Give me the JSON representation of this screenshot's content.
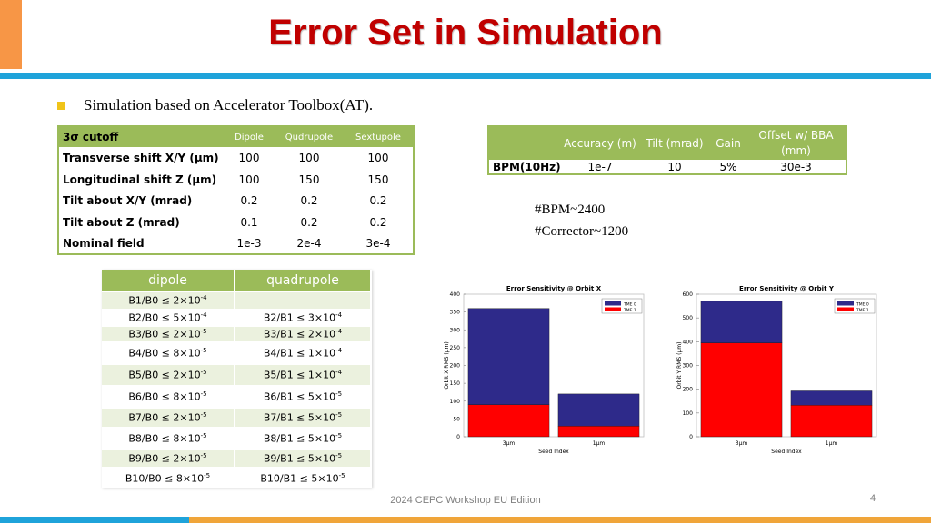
{
  "title": "Error Set in Simulation",
  "bullet": "Simulation based on Accelerator Toolbox(AT).",
  "cutoff_table": {
    "header": [
      "3σ cutoff",
      "Dipole",
      "Qudrupole",
      "Sextupole"
    ],
    "rows": [
      [
        "Transverse shift X/Y (μm)",
        "100",
        "100",
        "100"
      ],
      [
        "Longitudinal shift Z (μm)",
        "100",
        "150",
        "150"
      ],
      [
        "Tilt about X/Y (mrad)",
        "0.2",
        "0.2",
        "0.2"
      ],
      [
        "Tilt about Z (mrad)",
        "0.1",
        "0.2",
        "0.2"
      ],
      [
        "Nominal field",
        "1e-3",
        "2e-4",
        "3e-4"
      ]
    ]
  },
  "bpm_table": {
    "header": [
      "",
      "Accuracy (m)",
      "Tilt (mrad)",
      "Gain",
      "Offset w/ BBA (mm)"
    ],
    "row": [
      "BPM(10Hz)",
      "1e-7",
      "10",
      "5%",
      "30e-3"
    ]
  },
  "notes": [
    "#BPM~2400",
    "#Corrector~1200"
  ],
  "multipole_table": {
    "header": [
      "dipole",
      "quadrupole"
    ],
    "rows": [
      [
        [
          "B1/B0 ≤ 2×10",
          "-4"
        ],
        [
          "",
          ""
        ]
      ],
      [
        [
          "B2/B0 ≤ 5×10",
          "-4"
        ],
        [
          "B2/B1 ≤ 3×10",
          "-4"
        ]
      ],
      [
        [
          "B3/B0 ≤ 2×10",
          "-5"
        ],
        [
          "B3/B1 ≤ 2×10",
          "-4"
        ]
      ],
      [
        [
          "B4/B0 ≤ 8×10",
          "-5"
        ],
        [
          "B4/B1 ≤ 1×10",
          "-4"
        ]
      ],
      [
        [
          "B5/B0 ≤ 2×10",
          "-5"
        ],
        [
          "B5/B1 ≤ 1×10",
          "-4"
        ]
      ],
      [
        [
          "B6/B0 ≤ 8×10",
          "-5"
        ],
        [
          "B6/B1 ≤ 5×10",
          "-5"
        ]
      ],
      [
        [
          "B7/B0 ≤ 2×10",
          "-5"
        ],
        [
          "B7/B1 ≤ 5×10",
          "-5"
        ]
      ],
      [
        [
          "B8/B0 ≤ 8×10",
          "-5"
        ],
        [
          "B8/B1 ≤ 5×10",
          "-5"
        ]
      ],
      [
        [
          "B9/B0 ≤ 2×10",
          "-5"
        ],
        [
          "B9/B1 ≤ 5×10",
          "-5"
        ]
      ],
      [
        [
          "B10/B0 ≤ 8×10",
          "-5"
        ],
        [
          "B10/B1 ≤ 5×10",
          "-5"
        ]
      ]
    ]
  },
  "chart_data": [
    {
      "type": "bar",
      "stacked": true,
      "title": "Error Sensitivity @ Orbit X",
      "xlabel": "Seed Index",
      "ylabel": "Orbit X RMS (μm)",
      "categories": [
        "3μm",
        "1μm"
      ],
      "ylim": [
        0,
        400
      ],
      "yticks": [
        0,
        50,
        100,
        150,
        200,
        250,
        300,
        350,
        400
      ],
      "series": [
        {
          "name": "TME 0",
          "color": "#2e2a8a",
          "values": [
            270,
            90
          ]
        },
        {
          "name": "TME 1",
          "color": "#ff0000",
          "values": [
            90,
            30
          ]
        }
      ]
    },
    {
      "type": "bar",
      "stacked": true,
      "title": "Error Sensitivity @ Orbit Y",
      "xlabel": "Seed Index",
      "ylabel": "Orbit Y RMS (μm)",
      "categories": [
        "3μm",
        "1μm"
      ],
      "ylim": [
        0,
        600
      ],
      "yticks": [
        0,
        100,
        200,
        300,
        400,
        500,
        600
      ],
      "series": [
        {
          "name": "TME 0",
          "color": "#2e2a8a",
          "values": [
            175,
            60
          ]
        },
        {
          "name": "TME 1",
          "color": "#ff0000",
          "values": [
            395,
            133
          ]
        }
      ]
    }
  ],
  "footer": "2024 CEPC Workshop EU Edition",
  "page_number": "4"
}
